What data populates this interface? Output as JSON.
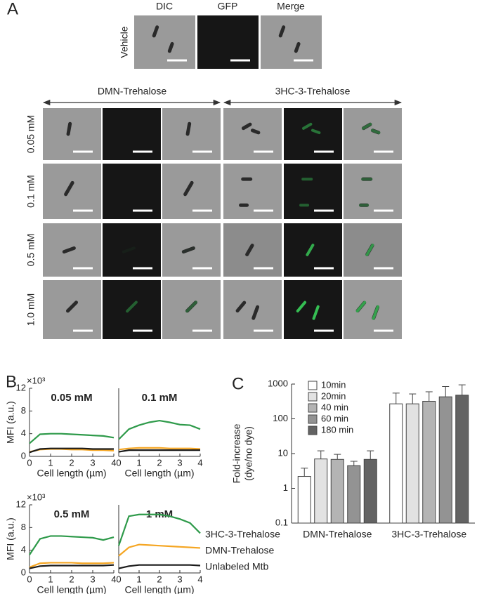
{
  "panel_a": {
    "label": "A",
    "vehicle": {
      "label": "Vehicle",
      "columns": [
        "DIC",
        "GFP",
        "Merge"
      ]
    },
    "groups": [
      "DMN-Trehalose",
      "3HC-3-Trehalose"
    ],
    "rows": [
      "0.05 mM",
      "0.1 mM",
      "0.5 mM",
      "1.0 mM"
    ]
  },
  "chart_data": [
    {
      "type": "line",
      "panel_label": "B",
      "title": "0.05 mM",
      "y_exponent_label": "×10³",
      "ylabel": "MFI (a.u.)",
      "xlabel": "Cell length (µm)",
      "x": [
        0,
        0.5,
        1,
        1.5,
        2,
        2.5,
        3,
        3.5,
        4
      ],
      "xlim": [
        0,
        4
      ],
      "xticks": [
        0,
        1,
        2,
        3,
        4
      ],
      "ylim": [
        0,
        12
      ],
      "yticks": [
        0,
        4,
        8,
        12
      ],
      "series": [
        {
          "color": "#2e9a4a",
          "values": [
            2.3,
            3.9,
            4.0,
            4.0,
            3.9,
            3.8,
            3.7,
            3.6,
            3.3
          ]
        },
        {
          "color": "#f5a623",
          "values": [
            0.8,
            1.2,
            1.3,
            1.3,
            1.2,
            1.2,
            1.1,
            1.1,
            1.0
          ]
        },
        {
          "color": "#1a1a1a",
          "values": [
            0.7,
            1.3,
            1.4,
            1.4,
            1.4,
            1.4,
            1.3,
            1.3,
            1.3
          ]
        }
      ]
    },
    {
      "type": "line",
      "title": "0.1 mM",
      "xlabel": "Cell length (µm)",
      "x": [
        0,
        0.5,
        1,
        1.5,
        2,
        2.5,
        3,
        3.5,
        4
      ],
      "xlim": [
        0,
        4
      ],
      "xticks": [
        0,
        1,
        2,
        3,
        4
      ],
      "ylim": [
        0,
        12
      ],
      "series": [
        {
          "color": "#2e9a4a",
          "values": [
            3.0,
            4.8,
            5.5,
            6.0,
            6.3,
            6.0,
            5.6,
            5.5,
            4.8
          ]
        },
        {
          "color": "#f5a623",
          "values": [
            1.2,
            1.4,
            1.5,
            1.5,
            1.5,
            1.4,
            1.4,
            1.4,
            1.3
          ]
        },
        {
          "color": "#1a1a1a",
          "values": [
            0.8,
            1.1,
            1.1,
            1.1,
            1.1,
            1.1,
            1.1,
            1.1,
            1.1
          ]
        }
      ]
    },
    {
      "type": "line",
      "title": "0.5 mM",
      "y_exponent_label": "×10³",
      "ylabel": "MFI (a.u.)",
      "xlabel": "Cell length (µm)",
      "x": [
        0,
        0.5,
        1,
        1.5,
        2,
        2.5,
        3,
        3.5,
        4
      ],
      "xlim": [
        0,
        4
      ],
      "xticks": [
        0,
        1,
        2,
        3,
        4
      ],
      "ylim": [
        0,
        12
      ],
      "yticks": [
        0,
        4,
        8,
        12
      ],
      "series": [
        {
          "color": "#2e9a4a",
          "values": [
            3.2,
            6.0,
            6.5,
            6.5,
            6.4,
            6.3,
            6.2,
            5.8,
            6.3
          ]
        },
        {
          "color": "#f5a623",
          "values": [
            1.0,
            1.7,
            1.8,
            1.8,
            1.8,
            1.7,
            1.7,
            1.7,
            1.8
          ]
        },
        {
          "color": "#1a1a1a",
          "values": [
            0.8,
            1.2,
            1.3,
            1.3,
            1.3,
            1.3,
            1.3,
            1.3,
            1.4
          ]
        }
      ]
    },
    {
      "type": "line",
      "title": "1 mM",
      "xlabel": "Cell length (µm)",
      "legend": "right",
      "x": [
        0,
        0.5,
        1,
        1.5,
        2,
        2.5,
        3,
        3.5,
        4
      ],
      "xlim": [
        0,
        4
      ],
      "xticks": [
        0,
        1,
        2,
        3,
        4
      ],
      "ylim": [
        0,
        12
      ],
      "series": [
        {
          "name": "3HC-3-Trehalose",
          "color": "#2e9a4a",
          "values": [
            4.8,
            10.0,
            10.3,
            10.3,
            10.3,
            10.0,
            9.5,
            8.8,
            7.0
          ]
        },
        {
          "name": "DMN-Trehalose",
          "color": "#f5a623",
          "values": [
            3.0,
            4.5,
            5.0,
            4.9,
            4.8,
            4.7,
            4.6,
            4.5,
            4.4
          ]
        },
        {
          "name": "Unlabeled Mtb",
          "color": "#1a1a1a",
          "values": [
            0.8,
            1.2,
            1.4,
            1.4,
            1.4,
            1.4,
            1.4,
            1.4,
            1.3
          ]
        }
      ]
    },
    {
      "type": "bar",
      "panel_label": "C",
      "ylabel": [
        "Fold-increase",
        "(dye/no dye)"
      ],
      "log_scale": true,
      "categories": [
        "DMN-Trehalose",
        "3HC-3-Trehalose"
      ],
      "ylim": [
        0.1,
        1000
      ],
      "yticks": [
        0.1,
        1,
        10,
        100,
        1000
      ],
      "legend": "top-left",
      "series": [
        {
          "name": "10min",
          "color": "#ffffff",
          "values": [
            2.2,
            270
          ],
          "errors": [
            1.6,
            280
          ]
        },
        {
          "name": "20min",
          "color": "#e2e2e2",
          "values": [
            7,
            270
          ],
          "errors": [
            5,
            250
          ]
        },
        {
          "name": "40 min",
          "color": "#b4b4b4",
          "values": [
            6.8,
            320
          ],
          "errors": [
            2.7,
            280
          ]
        },
        {
          "name": "60 min",
          "color": "#939393",
          "values": [
            4.5,
            430
          ],
          "errors": [
            1.5,
            420
          ]
        },
        {
          "name": "180 min",
          "color": "#636363",
          "values": [
            6.8,
            480
          ],
          "errors": [
            5.2,
            470
          ]
        }
      ]
    }
  ]
}
